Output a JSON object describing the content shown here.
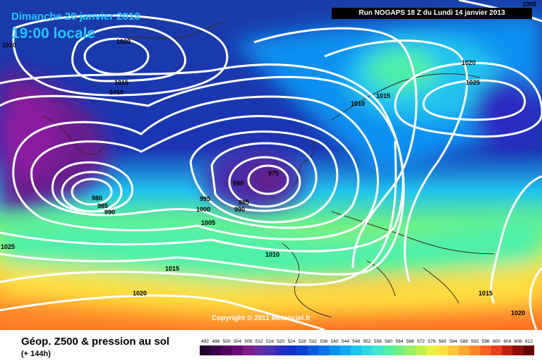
{
  "header": {
    "date": "Dimanche 20 janvier 2013",
    "time": "19:00 locale",
    "run": "Run NOGAPS 18 Z du Lundi 14 janvier 2013"
  },
  "copyright": "Copyright © 2011 Meteociel.fr",
  "footer": {
    "title": "Géop. Z500 & pression au sol",
    "subtitle": "(+ 144h)"
  },
  "legend": {
    "values": [
      "492",
      "496",
      "500",
      "504",
      "508",
      "512",
      "516",
      "520",
      "524",
      "528",
      "532",
      "536",
      "540",
      "544",
      "548",
      "552",
      "556",
      "560",
      "564",
      "568",
      "572",
      "576",
      "580",
      "584",
      "588",
      "592",
      "596",
      "600",
      "604",
      "608",
      "612"
    ],
    "colors": [
      "#250030",
      "#3a0048",
      "#520060",
      "#6a0a78",
      "#7e1a8a",
      "#6a2aa0",
      "#4a30b0",
      "#2a2cc0",
      "#1430cc",
      "#0a40d6",
      "#0a5ae0",
      "#0a74e8",
      "#0a90f0",
      "#10aaf2",
      "#20c4f0",
      "#30d8e8",
      "#40e8d0",
      "#50f0a8",
      "#70f080",
      "#98f060",
      "#c0f048",
      "#e8f040",
      "#ffe040",
      "#ffc838",
      "#ffa830",
      "#ff8428",
      "#ff6020",
      "#e84018",
      "#c02010",
      "#901008",
      "#600400"
    ]
  },
  "isobars": [
    {
      "value": "1020",
      "label": "1020"
    },
    {
      "value": "1015",
      "label": "1015"
    },
    {
      "value": "1010",
      "label": "1010"
    },
    {
      "value": "1005",
      "label": "1005"
    },
    {
      "value": "1000",
      "label": "1000"
    },
    {
      "value": "995",
      "label": "995"
    },
    {
      "value": "990",
      "label": "990"
    },
    {
      "value": "985",
      "label": "985"
    },
    {
      "value": "980",
      "label": "980"
    },
    {
      "value": "975",
      "label": "975"
    },
    {
      "value": "1025",
      "label": "1025"
    }
  ],
  "isobar_labels": [
    {
      "text": "1020",
      "name": "label-1020-north-atlantic"
    },
    {
      "text": "1015",
      "name": "label-1015-north-atlantic"
    },
    {
      "text": "1010",
      "name": "label-1010-north-atlantic"
    },
    {
      "text": "1010",
      "name": "label-1010-west"
    },
    {
      "text": "980",
      "name": "label-980-west-low"
    },
    {
      "text": "985",
      "name": "label-985-west-low"
    },
    {
      "text": "990",
      "name": "label-990-west-low"
    },
    {
      "text": "975",
      "name": "label-975-central-low"
    },
    {
      "text": "980",
      "name": "label-980-central-low"
    },
    {
      "text": "985",
      "name": "label-985-central-low"
    },
    {
      "text": "990",
      "name": "label-990-central-low"
    },
    {
      "text": "995",
      "name": "label-995"
    },
    {
      "text": "1000",
      "name": "label-1000"
    },
    {
      "text": "1005",
      "name": "label-1005"
    },
    {
      "text": "1010",
      "name": "label-1010-biscay"
    },
    {
      "text": "1015",
      "name": "label-1015-south"
    },
    {
      "text": "1020",
      "name": "label-1020-south"
    },
    {
      "text": "1025",
      "name": "label-1025-west"
    },
    {
      "text": "1010",
      "name": "label-1010-norway"
    },
    {
      "text": "1015",
      "name": "label-1015-norway"
    },
    {
      "text": "1020",
      "name": "label-1020-scandinavia"
    },
    {
      "text": "1025",
      "name": "label-1025-scandinavia"
    },
    {
      "text": "1005",
      "name": "label-1005-top-right"
    },
    {
      "text": "1015",
      "name": "label-1015-east"
    },
    {
      "text": "1020",
      "name": "label-1020-east"
    }
  ]
}
